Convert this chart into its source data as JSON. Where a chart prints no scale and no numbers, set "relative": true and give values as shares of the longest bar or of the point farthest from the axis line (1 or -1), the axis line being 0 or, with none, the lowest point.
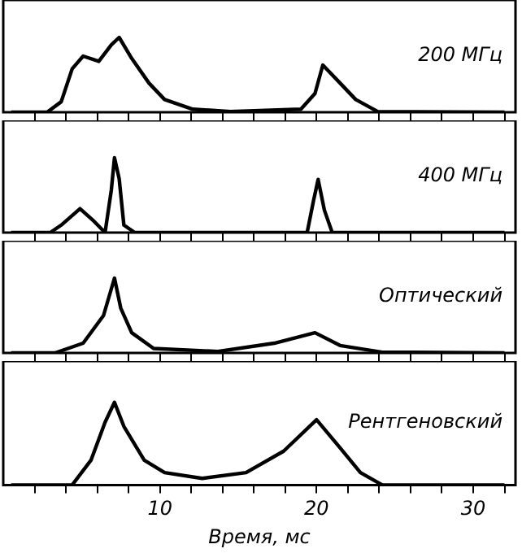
{
  "chart_data": [
    {
      "type": "line",
      "relative": true,
      "tick_labels": false,
      "xlim": [
        0,
        32.7
      ],
      "xticks": [
        {
          "value": 2,
          "label": null
        },
        {
          "value": 4,
          "label": null
        },
        {
          "value": 6,
          "label": null
        },
        {
          "value": 8,
          "label": null
        },
        {
          "value": 10,
          "label": null
        },
        {
          "value": 12,
          "label": null
        },
        {
          "value": 14,
          "label": null
        },
        {
          "value": 16,
          "label": null
        },
        {
          "value": 18,
          "label": null
        },
        {
          "value": 20,
          "label": null
        },
        {
          "value": 22,
          "label": null
        },
        {
          "value": 24,
          "label": null
        },
        {
          "value": 26,
          "label": null
        },
        {
          "value": 28,
          "label": null
        },
        {
          "value": 30,
          "label": null
        },
        {
          "value": 32,
          "label": null
        }
      ],
      "annotations": [
        "200 МГц"
      ],
      "series": [
        {
          "color": "#000000",
          "x": [
            0.5,
            2.8,
            3.7,
            4.4,
            5.1,
            6.1,
            6.9,
            7.4,
            8.2,
            9.3,
            10.3,
            12.1,
            14.5,
            19.0,
            19.9,
            20.4,
            21.5,
            22.5,
            23.9,
            32.0
          ],
          "values": [
            0,
            0,
            0.14,
            0.58,
            0.75,
            0.68,
            0.9,
            1,
            0.72,
            0.39,
            0.17,
            0.04,
            0.01,
            0.04,
            0.25,
            0.63,
            0.39,
            0.17,
            0.01,
            0
          ]
        }
      ]
    },
    {
      "type": "line",
      "relative": true,
      "tick_labels": false,
      "xlim": [
        0,
        32.7
      ],
      "xticks": [
        {
          "value": 2,
          "label": null
        },
        {
          "value": 4,
          "label": null
        },
        {
          "value": 6,
          "label": null
        },
        {
          "value": 8,
          "label": null
        },
        {
          "value": 10,
          "label": null
        },
        {
          "value": 12,
          "label": null
        },
        {
          "value": 14,
          "label": null
        },
        {
          "value": 16,
          "label": null
        },
        {
          "value": 18,
          "label": null
        },
        {
          "value": 20,
          "label": null
        },
        {
          "value": 22,
          "label": null
        },
        {
          "value": 24,
          "label": null
        },
        {
          "value": 26,
          "label": null
        },
        {
          "value": 28,
          "label": null
        },
        {
          "value": 30,
          "label": null
        },
        {
          "value": 32,
          "label": null
        }
      ],
      "annotations": [
        "400 МГц"
      ],
      "series": [
        {
          "color": "#000000",
          "x": [
            0.5,
            3.0,
            3.7,
            4.9,
            5.8,
            6.5,
            6.9,
            7.1,
            7.4,
            7.7,
            8.4,
            19.4,
            19.8,
            20.1,
            20.5,
            21.0,
            32.0
          ],
          "values": [
            0,
            0,
            0.1,
            0.32,
            0.15,
            0.0,
            0.57,
            1,
            0.72,
            0.1,
            0,
            0,
            0.42,
            0.71,
            0.3,
            0,
            0
          ]
        }
      ]
    },
    {
      "type": "line",
      "relative": true,
      "tick_labels": false,
      "xlim": [
        0,
        32.7
      ],
      "xticks": [
        {
          "value": 2,
          "label": null
        },
        {
          "value": 4,
          "label": null
        },
        {
          "value": 6,
          "label": null
        },
        {
          "value": 8,
          "label": null
        },
        {
          "value": 10,
          "label": null
        },
        {
          "value": 12,
          "label": null
        },
        {
          "value": 14,
          "label": null
        },
        {
          "value": 16,
          "label": null
        },
        {
          "value": 18,
          "label": null
        },
        {
          "value": 20,
          "label": null
        },
        {
          "value": 22,
          "label": null
        },
        {
          "value": 24,
          "label": null
        },
        {
          "value": 26,
          "label": null
        },
        {
          "value": 28,
          "label": null
        },
        {
          "value": 30,
          "label": null
        },
        {
          "value": 32,
          "label": null
        }
      ],
      "annotations": [
        "Оптический"
      ],
      "series": [
        {
          "color": "#000000",
          "x": [
            0.5,
            3.3,
            5.1,
            6.4,
            7.1,
            7.5,
            8.2,
            9.6,
            13.7,
            17.3,
            19.9,
            21.5,
            24.2,
            32.0
          ],
          "values": [
            0,
            0,
            0.13,
            0.5,
            1,
            0.6,
            0.27,
            0.06,
            0.02,
            0.13,
            0.27,
            0.1,
            0.01,
            0
          ]
        }
      ]
    },
    {
      "type": "line",
      "relative": true,
      "tick_labels": "x",
      "xlim": [
        0,
        32.7
      ],
      "xticks": [
        {
          "value": 2,
          "label": null
        },
        {
          "value": 4,
          "label": null
        },
        {
          "value": 6,
          "label": null
        },
        {
          "value": 8,
          "label": null
        },
        10,
        {
          "value": 12,
          "label": null
        },
        {
          "value": 14,
          "label": null
        },
        {
          "value": 16,
          "label": null
        },
        {
          "value": 18,
          "label": null
        },
        20,
        {
          "value": 22,
          "label": null
        },
        {
          "value": 24,
          "label": null
        },
        {
          "value": 26,
          "label": null
        },
        {
          "value": 28,
          "label": null
        },
        30,
        {
          "value": 32,
          "label": null
        }
      ],
      "xlabel": "Время, мс",
      "annotations": [
        "Рентгеновский"
      ],
      "series": [
        {
          "color": "#000000",
          "x": [
            0.5,
            4.4,
            5.6,
            6.5,
            7.1,
            7.7,
            9.0,
            10.3,
            12.7,
            15.5,
            17.9,
            20.0,
            21.5,
            22.8,
            24.2,
            32.0
          ],
          "values": [
            0,
            0,
            0.3,
            0.76,
            1,
            0.71,
            0.3,
            0.15,
            0.08,
            0.15,
            0.41,
            0.79,
            0.45,
            0.15,
            0,
            0
          ]
        }
      ]
    }
  ]
}
